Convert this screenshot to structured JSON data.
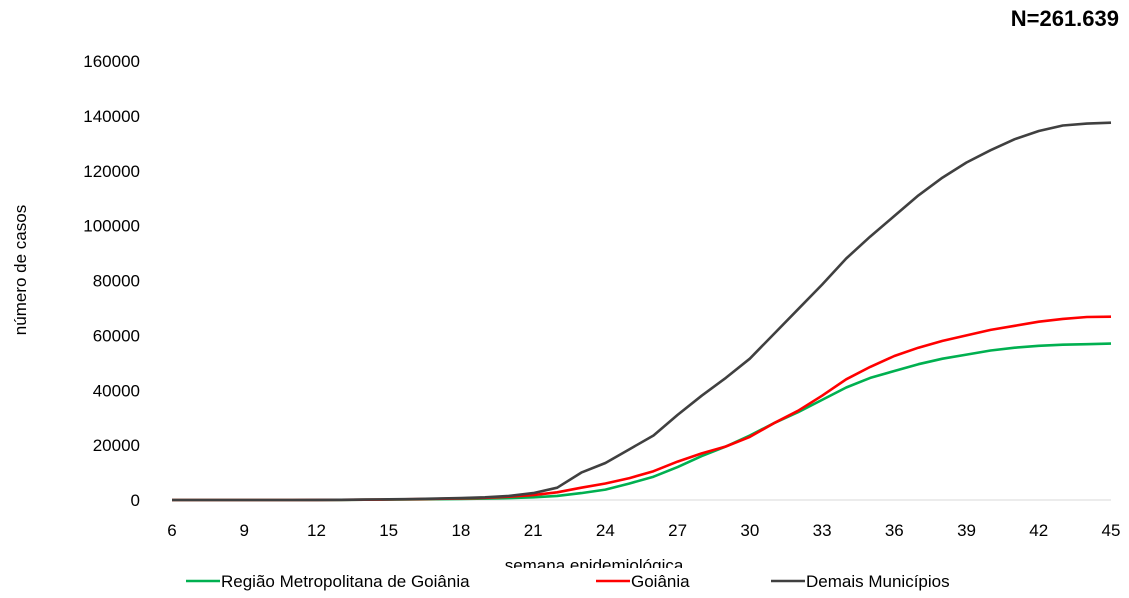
{
  "note": "N=261.639",
  "chart_data": {
    "type": "line",
    "title": "",
    "xlabel": "semana epidemiológica",
    "ylabel": "número de casos",
    "xlim": [
      6,
      45
    ],
    "ylim": [
      0,
      160000
    ],
    "x_ticks": [
      6,
      9,
      12,
      15,
      18,
      21,
      24,
      27,
      30,
      33,
      36,
      39,
      42,
      45
    ],
    "y_ticks": [
      0,
      20000,
      40000,
      60000,
      80000,
      100000,
      120000,
      140000,
      160000
    ],
    "x": [
      6,
      7,
      8,
      9,
      10,
      11,
      12,
      13,
      14,
      15,
      16,
      17,
      18,
      19,
      20,
      21,
      22,
      23,
      24,
      25,
      26,
      27,
      28,
      29,
      30,
      31,
      32,
      33,
      34,
      35,
      36,
      37,
      38,
      39,
      40,
      41,
      42,
      43,
      44,
      45
    ],
    "grid": false,
    "legend_position": "bottom",
    "series": [
      {
        "name": "Região Metropolitana de Goiânia",
        "color": "#00b050",
        "values": [
          0,
          0,
          0,
          0,
          0,
          0,
          20,
          50,
          100,
          150,
          200,
          300,
          400,
          500,
          700,
          1000,
          1500,
          2500,
          3800,
          6000,
          8500,
          12000,
          16000,
          19500,
          23500,
          28000,
          32000,
          36500,
          41000,
          44500,
          47000,
          49500,
          51500,
          53000,
          54500,
          55500,
          56200,
          56600,
          56800,
          57000
        ]
      },
      {
        "name": "Goiânia",
        "color": "#ff0000",
        "values": [
          0,
          0,
          0,
          0,
          0,
          0,
          20,
          60,
          120,
          200,
          300,
          450,
          600,
          800,
          1200,
          1800,
          2800,
          4500,
          6000,
          8000,
          10500,
          14000,
          17000,
          19500,
          23000,
          28000,
          32500,
          38000,
          44000,
          48500,
          52500,
          55500,
          58000,
          60000,
          62000,
          63500,
          65000,
          66000,
          66700,
          66800
        ]
      },
      {
        "name": "Demais Municípios",
        "color": "#404040",
        "values": [
          0,
          0,
          0,
          0,
          0,
          0,
          30,
          80,
          150,
          250,
          350,
          500,
          700,
          1000,
          1500,
          2500,
          4500,
          10000,
          13500,
          18500,
          23500,
          31000,
          38000,
          44500,
          51500,
          60500,
          69500,
          78500,
          88000,
          96000,
          103500,
          111000,
          117500,
          123000,
          127500,
          131500,
          134500,
          136500,
          137200,
          137500
        ]
      }
    ]
  }
}
